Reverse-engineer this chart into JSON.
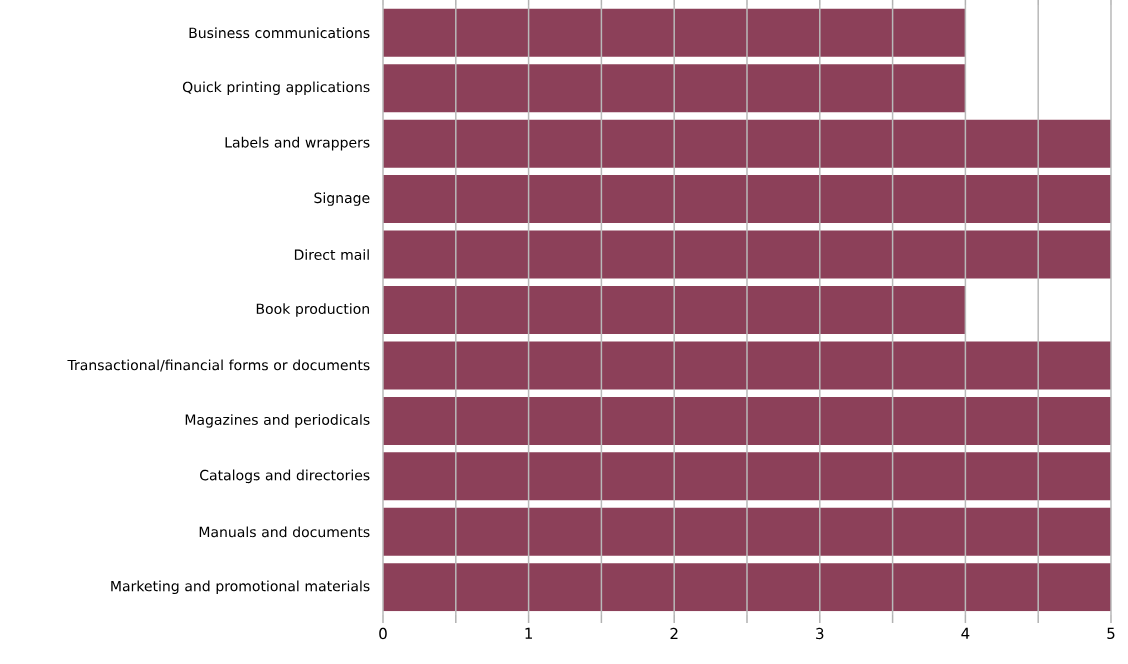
{
  "chart_data": {
    "type": "bar",
    "orientation": "horizontal",
    "categories": [
      "Business communications",
      "Quick printing applications",
      "Labels and wrappers",
      "Signage",
      "Direct mail",
      "Book production",
      "Transactional/financial forms or documents",
      "Magazines and periodicals",
      "Catalogs and directories",
      "Manuals and documents",
      "Marketing and promotional materials"
    ],
    "values": [
      4,
      4,
      5,
      5,
      5,
      4,
      5,
      5,
      5,
      5,
      5
    ],
    "color": "#8c4059",
    "xlim": [
      0,
      5
    ],
    "xticks": [
      0,
      {
        "value": 0.5,
        "label": null
      },
      1,
      {
        "value": 1.5,
        "label": null
      },
      2,
      {
        "value": 2.5,
        "label": null
      },
      3,
      {
        "value": 3.5,
        "label": null
      },
      4,
      {
        "value": 4.5,
        "label": null
      },
      5
    ],
    "grid": "x"
  }
}
